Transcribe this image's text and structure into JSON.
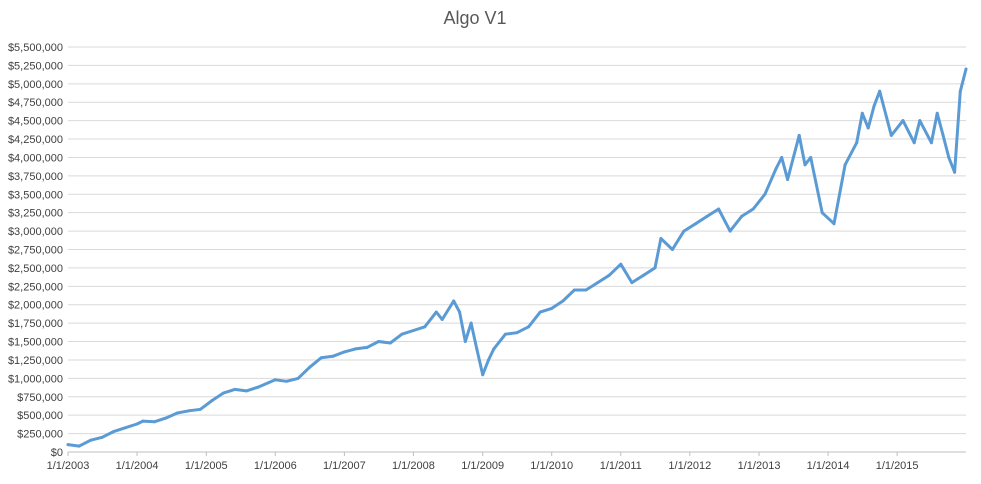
{
  "chart_data": {
    "type": "line",
    "title": "Algo V1",
    "xlabel": "",
    "ylabel": "",
    "ylim": [
      0,
      5500000
    ],
    "y_ticks": [
      0,
      250000,
      500000,
      750000,
      1000000,
      1250000,
      1500000,
      1750000,
      2000000,
      2250000,
      2500000,
      2750000,
      3000000,
      3250000,
      3500000,
      3750000,
      4000000,
      4250000,
      4500000,
      4750000,
      5000000,
      5250000,
      5500000
    ],
    "y_tick_labels": [
      "$0",
      "$250,000",
      "$500,000",
      "$750,000",
      "$1,000,000",
      "$1,250,000",
      "$1,500,000",
      "$1,750,000",
      "$2,000,000",
      "$2,250,000",
      "$2,500,000",
      "$2,750,000",
      "$3,000,000",
      "$3,250,000",
      "$3,500,000",
      "$3,750,000",
      "$4,000,000",
      "$4,250,000",
      "$4,500,000",
      "$4,750,000",
      "$5,000,000",
      "$5,250,000",
      "$5,500,000"
    ],
    "x_tick_labels": [
      "1/1/2003",
      "1/1/2004",
      "1/1/2005",
      "1/1/2006",
      "1/1/2007",
      "1/1/2008",
      "1/1/2009",
      "1/1/2010",
      "1/1/2011",
      "1/1/2012",
      "1/1/2013",
      "1/1/2014",
      "1/1/2015"
    ],
    "xlim": [
      "2003-01-01",
      "2015-12-31"
    ],
    "grid": true,
    "legend": "none",
    "color": "#5b9bd5",
    "series": [
      {
        "x": [
          "2003-01-01",
          "2003-03-01",
          "2003-05-01",
          "2003-07-01",
          "2003-09-01",
          "2003-11-01",
          "2004-01-01",
          "2004-02-01",
          "2004-04-01",
          "2004-06-01",
          "2004-08-01",
          "2004-10-01",
          "2004-12-01",
          "2005-02-01",
          "2005-04-01",
          "2005-06-01",
          "2005-08-01",
          "2005-10-01",
          "2006-01-01",
          "2006-03-01",
          "2006-05-01",
          "2006-07-01",
          "2006-09-01",
          "2006-11-01",
          "2007-01-01",
          "2007-03-01",
          "2007-05-01",
          "2007-07-01",
          "2007-09-01",
          "2007-11-01",
          "2008-01-01",
          "2008-03-01",
          "2008-05-01",
          "2008-06-01",
          "2008-08-01",
          "2008-09-01",
          "2008-10-01",
          "2008-11-01",
          "2008-12-01",
          "2009-01-01",
          "2009-02-01",
          "2009-03-01",
          "2009-05-01",
          "2009-07-01",
          "2009-09-01",
          "2009-11-01",
          "2010-01-01",
          "2010-03-01",
          "2010-05-01",
          "2010-07-01",
          "2010-09-01",
          "2010-11-01",
          "2011-01-01",
          "2011-03-01",
          "2011-05-01",
          "2011-07-01",
          "2011-08-01",
          "2011-10-01",
          "2011-12-01",
          "2012-02-01",
          "2012-04-01",
          "2012-06-01",
          "2012-08-01",
          "2012-10-01",
          "2012-12-01",
          "2013-02-01",
          "2013-04-01",
          "2013-05-01",
          "2013-06-01",
          "2013-08-01",
          "2013-09-01",
          "2013-10-01",
          "2013-12-01",
          "2014-02-01",
          "2014-04-01",
          "2014-06-01",
          "2014-07-01",
          "2014-08-01",
          "2014-09-01",
          "2014-10-01",
          "2014-12-01",
          "2015-02-01",
          "2015-04-01",
          "2015-05-01",
          "2015-07-01",
          "2015-08-01",
          "2015-09-01",
          "2015-10-01",
          "2015-11-01",
          "2015-12-01",
          "2015-12-31"
        ],
        "y": [
          100000,
          80000,
          160000,
          200000,
          280000,
          330000,
          380000,
          420000,
          410000,
          460000,
          530000,
          560000,
          580000,
          700000,
          800000,
          850000,
          830000,
          880000,
          980000,
          960000,
          1000000,
          1150000,
          1280000,
          1300000,
          1360000,
          1400000,
          1420000,
          1500000,
          1480000,
          1600000,
          1650000,
          1700000,
          1900000,
          1800000,
          2050000,
          1900000,
          1500000,
          1750000,
          1400000,
          1050000,
          1250000,
          1400000,
          1600000,
          1620000,
          1700000,
          1900000,
          1950000,
          2050000,
          2200000,
          2200000,
          2300000,
          2400000,
          2550000,
          2300000,
          2400000,
          2500000,
          2900000,
          2750000,
          3000000,
          3100000,
          3200000,
          3300000,
          3000000,
          3200000,
          3300000,
          3500000,
          3850000,
          4000000,
          3700000,
          4300000,
          3900000,
          4000000,
          3250000,
          3100000,
          3900000,
          4200000,
          4600000,
          4400000,
          4700000,
          4900000,
          4300000,
          4500000,
          4200000,
          4500000,
          4200000,
          4600000,
          4300000,
          4000000,
          3800000,
          4900000,
          5200000
        ]
      }
    ]
  }
}
